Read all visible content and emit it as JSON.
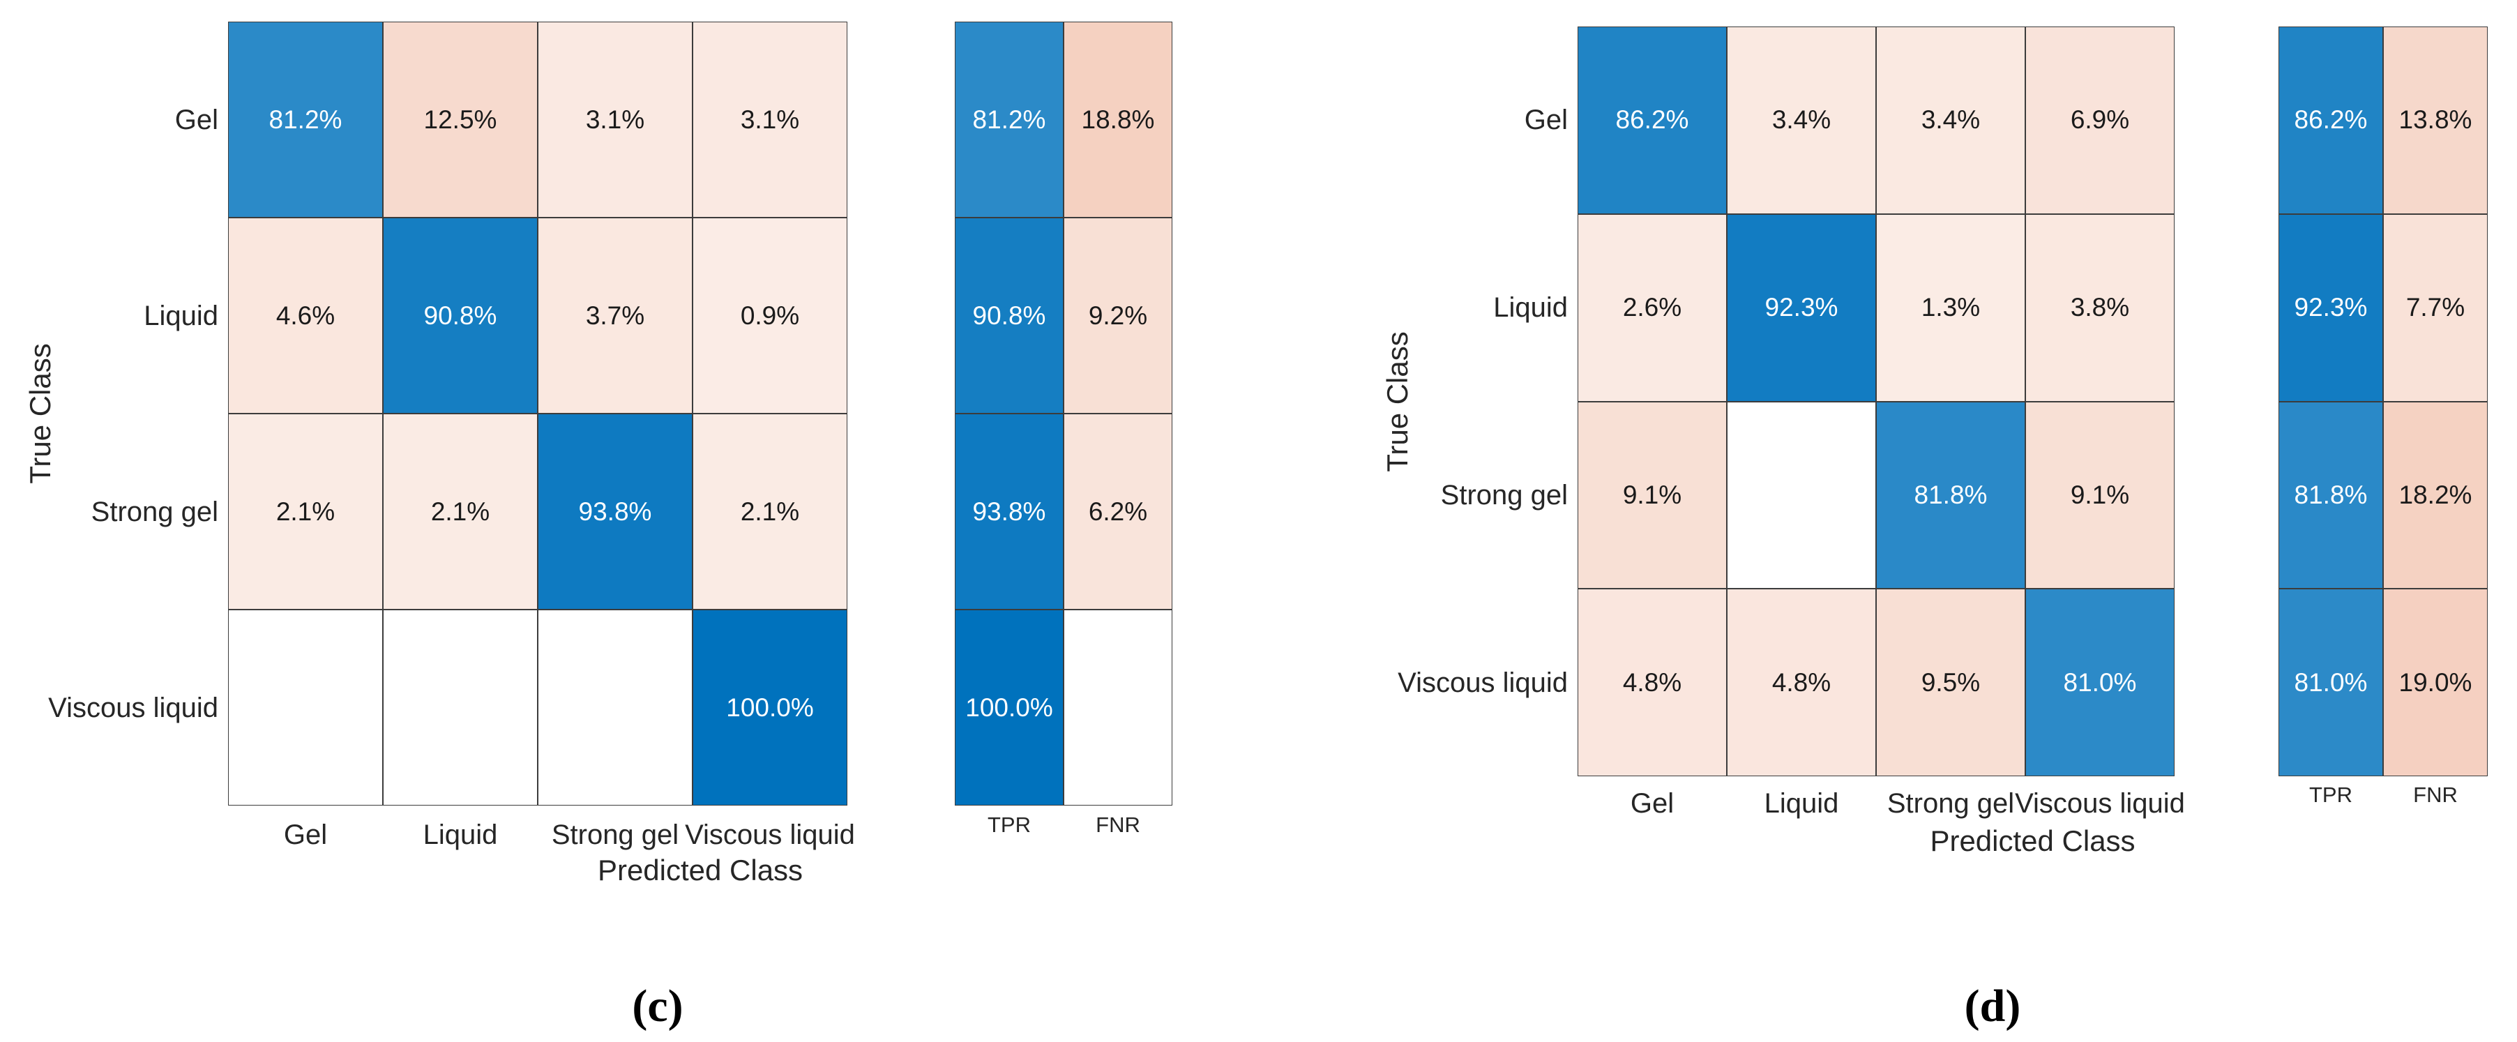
{
  "figure": {
    "background": "#FFFFFF",
    "colors": {
      "diagonal": "#0072BD",
      "off_diagonal": "#D95319",
      "grid_line": "#3C3C3C",
      "tick_text": "#262626",
      "cell_text_dark": "#1A1A1A",
      "cell_text_light": "#FFFFFF"
    }
  },
  "chart_data": [
    {
      "id": "c",
      "type": "heatmap",
      "subtype": "confusion-matrix-row-normalized",
      "caption": "(c)",
      "xlabel": "Predicted Class",
      "ylabel": "True Class",
      "classes": [
        "Gel",
        "Liquid",
        "Strong gel",
        "Viscous liquid"
      ],
      "summary_columns": [
        "TPR",
        "FNR"
      ],
      "legend": "none",
      "grid": "on",
      "rows": [
        {
          "true_class": "Gel",
          "cells": [
            "81.2%",
            "12.5%",
            "3.1%",
            "3.1%"
          ],
          "values_pct": [
            81.2,
            12.5,
            3.1,
            3.1
          ],
          "tpr": "81.2%",
          "tpr_pct": 81.2,
          "fnr": "18.8%",
          "fnr_pct": 18.8
        },
        {
          "true_class": "Liquid",
          "cells": [
            "4.6%",
            "90.8%",
            "3.7%",
            "0.9%"
          ],
          "values_pct": [
            4.6,
            90.8,
            3.7,
            0.9
          ],
          "tpr": "90.8%",
          "tpr_pct": 90.8,
          "fnr": "9.2%",
          "fnr_pct": 9.2
        },
        {
          "true_class": "Strong gel",
          "cells": [
            "2.1%",
            "2.1%",
            "93.8%",
            "2.1%"
          ],
          "values_pct": [
            2.1,
            2.1,
            93.8,
            2.1
          ],
          "tpr": "93.8%",
          "tpr_pct": 93.8,
          "fnr": "6.2%",
          "fnr_pct": 6.2
        },
        {
          "true_class": "Viscous liquid",
          "cells": [
            "",
            "",
            "",
            "100.0%"
          ],
          "values_pct": [
            null,
            null,
            null,
            100.0
          ],
          "tpr": "100.0%",
          "tpr_pct": 100.0,
          "fnr": "",
          "fnr_pct": null
        }
      ]
    },
    {
      "id": "d",
      "type": "heatmap",
      "subtype": "confusion-matrix-row-normalized",
      "caption": "(d)",
      "xlabel": "Predicted Class",
      "ylabel": "True Class",
      "classes": [
        "Gel",
        "Liquid",
        "Strong gel",
        "Viscous liquid"
      ],
      "summary_columns": [
        "TPR",
        "FNR"
      ],
      "legend": "none",
      "grid": "on",
      "rows": [
        {
          "true_class": "Gel",
          "cells": [
            "86.2%",
            "3.4%",
            "3.4%",
            "6.9%"
          ],
          "values_pct": [
            86.2,
            3.4,
            3.4,
            6.9
          ],
          "tpr": "86.2%",
          "tpr_pct": 86.2,
          "fnr": "13.8%",
          "fnr_pct": 13.8
        },
        {
          "true_class": "Liquid",
          "cells": [
            "2.6%",
            "92.3%",
            "1.3%",
            "3.8%"
          ],
          "values_pct": [
            2.6,
            92.3,
            1.3,
            3.8
          ],
          "tpr": "92.3%",
          "tpr_pct": 92.3,
          "fnr": "7.7%",
          "fnr_pct": 7.7
        },
        {
          "true_class": "Strong gel",
          "cells": [
            "9.1%",
            "",
            "81.8%",
            "9.1%"
          ],
          "values_pct": [
            9.1,
            null,
            81.8,
            9.1
          ],
          "tpr": "81.8%",
          "tpr_pct": 81.8,
          "fnr": "18.2%",
          "fnr_pct": 18.2
        },
        {
          "true_class": "Viscous liquid",
          "cells": [
            "4.8%",
            "4.8%",
            "9.5%",
            "81.0%"
          ],
          "values_pct": [
            4.8,
            4.8,
            9.5,
            81.0
          ],
          "tpr": "81.0%",
          "tpr_pct": 81.0,
          "fnr": "19.0%",
          "fnr_pct": 19.0
        }
      ]
    }
  ]
}
